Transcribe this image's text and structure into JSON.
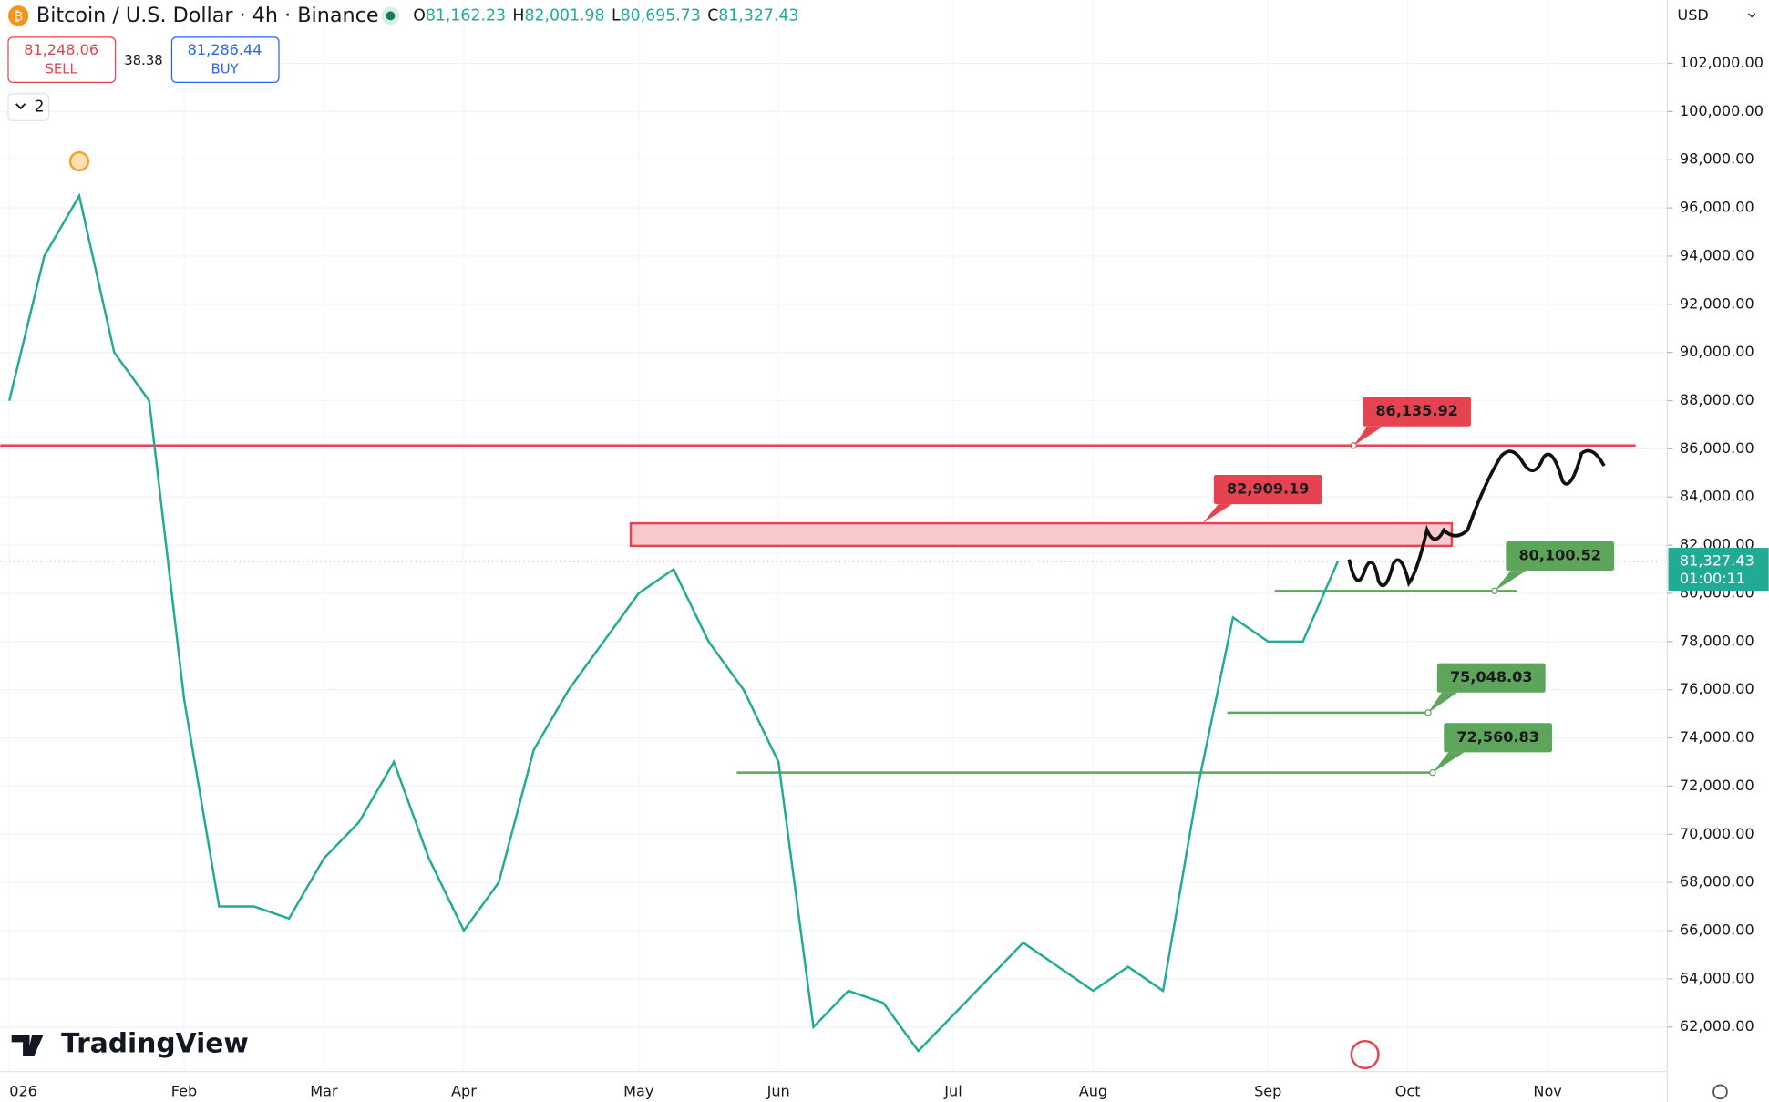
{
  "header": {
    "icon": "₿",
    "symbol": "Bitcoin / U.S. Dollar · 4h · Binance",
    "ohlc": [
      {
        "key": "O",
        "value": "81,162.23"
      },
      {
        "key": "H",
        "value": "82,001.98"
      },
      {
        "key": "L",
        "value": "80,695.73"
      },
      {
        "key": "C",
        "value": "81,327.43"
      }
    ],
    "sell_price": "81,248.06",
    "sell": "SELL",
    "spread": "38.38",
    "buy_price": "81,286.44",
    "buy": "BUY",
    "indicators": "2",
    "currency": "USD",
    "watermark": "TradingView"
  },
  "chart_data": {
    "type": "line",
    "categories": [
      "026",
      null,
      null,
      null,
      null,
      "Feb",
      null,
      null,
      null,
      "Mar",
      null,
      null,
      null,
      "Apr",
      null,
      null,
      null,
      null,
      "May",
      null,
      null,
      null,
      "Jun",
      null,
      null,
      null,
      null,
      "Jul",
      null,
      null,
      null,
      "Aug",
      null,
      null,
      null,
      null,
      "Sep",
      null,
      null,
      null,
      "Oct",
      null,
      null,
      null,
      "Nov",
      null,
      null,
      null
    ],
    "series": [
      {
        "name": "BTCUSD",
        "color": "#22ab94",
        "values": [
          88000,
          94000,
          96500,
          90000,
          88000,
          75600,
          67000,
          67000,
          66500,
          69000,
          70500,
          73000,
          69000,
          66000,
          68000,
          73500,
          76000,
          78000,
          80000,
          81000,
          78000,
          76000,
          73000,
          62000,
          63500,
          63000,
          61000,
          62500,
          64000,
          65500,
          64500,
          63500,
          64500,
          63500,
          72000,
          79000,
          78000,
          78000,
          81327.43,
          null,
          null,
          null,
          null,
          null,
          null,
          null,
          null,
          null
        ]
      }
    ],
    "ylim": [
      60150,
      104630
    ],
    "yticks": [
      {
        "value": 62000,
        "label": "62,000.00"
      },
      {
        "value": 64000,
        "label": "64,000.00"
      },
      {
        "value": 66000,
        "label": "66,000.00"
      },
      {
        "value": 68000,
        "label": "68,000.00"
      },
      {
        "value": 70000,
        "label": "70,000.00"
      },
      {
        "value": 72000,
        "label": "72,000.00"
      },
      {
        "value": 74000,
        "label": "74,000.00"
      },
      {
        "value": 76000,
        "label": "76,000.00"
      },
      {
        "value": 78000,
        "label": "78,000.00"
      },
      {
        "value": 80000,
        "label": "80,000.00"
      },
      {
        "value": 82000,
        "label": "82,000.00"
      },
      {
        "value": 84000,
        "label": "84,000.00"
      },
      {
        "value": 86000,
        "label": "86,000.00"
      },
      {
        "value": 88000,
        "label": "88,000.00"
      },
      {
        "value": 90000,
        "label": "90,000.00"
      },
      {
        "value": 92000,
        "label": "92,000.00"
      },
      {
        "value": 94000,
        "label": "94,000.00"
      },
      {
        "value": 96000,
        "label": "96,000.00"
      },
      {
        "value": 98000,
        "label": "98,000.00"
      },
      {
        "value": 100000,
        "label": "100,000.00"
      },
      {
        "value": 102000,
        "label": "102,000.00"
      }
    ],
    "grid": true,
    "last_price": {
      "value": 81327.43,
      "label": "81,327.43",
      "countdown": "01:00:11",
      "color": "#22ab94"
    },
    "zone": {
      "value": 82909.19,
      "label": "82,909.19",
      "low": 81970,
      "color": "#e5434f"
    },
    "levels": [
      {
        "value": 86135.92,
        "label": "86,135.92",
        "color": "#e5434f"
      },
      {
        "value": 80100.52,
        "label": "80,100.52",
        "color": "#5ca55a"
      },
      {
        "value": 75048.03,
        "label": "75,048.03",
        "color": "#5ca55a"
      },
      {
        "value": 72560.83,
        "label": "72,560.83",
        "color": "#5ca55a"
      }
    ]
  }
}
